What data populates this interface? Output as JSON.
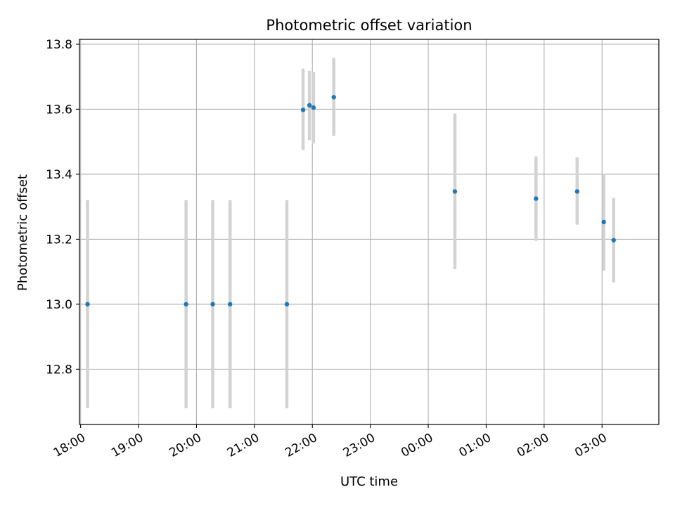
{
  "chart_data": {
    "type": "scatter",
    "title": "Photometric offset variation",
    "xlabel": "UTC time",
    "ylabel": "Photometric offset",
    "x_tick_labels": [
      "18:00",
      "19:00",
      "20:00",
      "21:00",
      "22:00",
      "23:00",
      "00:00",
      "01:00",
      "02:00",
      "03:00"
    ],
    "x_tick_hours": [
      0,
      1,
      2,
      3,
      4,
      5,
      6,
      7,
      8,
      9
    ],
    "x_axis_start_hour_utc": "18:00",
    "xlim_hours": [
      -0.02,
      9.98
    ],
    "ylim": [
      12.63,
      13.815
    ],
    "y_ticks": [
      12.8,
      13.0,
      13.2,
      13.4,
      13.6,
      13.8
    ],
    "y_tick_labels": [
      "12.8",
      "13.0",
      "13.2",
      "13.4",
      "13.6",
      "13.8"
    ],
    "grid": true,
    "colors": {
      "point": "#1f77b4",
      "error_bar": "#d3d3d3",
      "grid": "#b0b0b0"
    },
    "points": [
      {
        "time": "18:07",
        "hours": 0.12,
        "y": 13.0,
        "y_low": 12.68,
        "y_high": 13.32
      },
      {
        "time": "19:49",
        "hours": 1.82,
        "y": 13.0,
        "y_low": 12.68,
        "y_high": 13.32
      },
      {
        "time": "20:16",
        "hours": 2.28,
        "y": 13.0,
        "y_low": 12.68,
        "y_high": 13.32
      },
      {
        "time": "20:35",
        "hours": 2.58,
        "y": 13.0,
        "y_low": 12.68,
        "y_high": 13.32
      },
      {
        "time": "21:33",
        "hours": 3.56,
        "y": 13.0,
        "y_low": 12.68,
        "y_high": 13.32
      },
      {
        "time": "21:50",
        "hours": 3.84,
        "y": 13.598,
        "y_low": 13.475,
        "y_high": 13.725
      },
      {
        "time": "21:57",
        "hours": 3.95,
        "y": 13.612,
        "y_low": 13.505,
        "y_high": 13.718
      },
      {
        "time": "22:01",
        "hours": 4.02,
        "y": 13.605,
        "y_low": 13.495,
        "y_high": 13.715
      },
      {
        "time": "22:22",
        "hours": 4.37,
        "y": 13.637,
        "y_low": 13.518,
        "y_high": 13.758
      },
      {
        "time": "00:27",
        "hours": 6.46,
        "y": 13.347,
        "y_low": 13.108,
        "y_high": 13.587
      },
      {
        "time": "01:52",
        "hours": 7.86,
        "y": 13.325,
        "y_low": 13.195,
        "y_high": 13.455
      },
      {
        "time": "02:35",
        "hours": 8.57,
        "y": 13.347,
        "y_low": 13.245,
        "y_high": 13.452
      },
      {
        "time": "03:02",
        "hours": 9.03,
        "y": 13.253,
        "y_low": 13.103,
        "y_high": 13.402
      },
      {
        "time": "03:12",
        "hours": 9.2,
        "y": 13.197,
        "y_low": 13.067,
        "y_high": 13.327
      }
    ]
  }
}
